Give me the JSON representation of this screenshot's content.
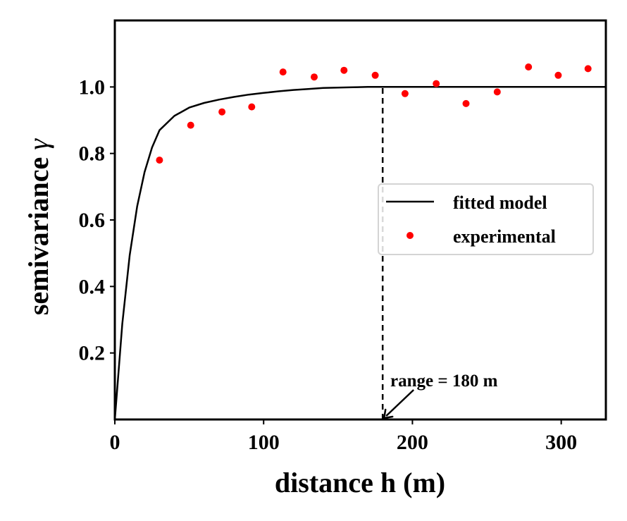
{
  "chart_data": {
    "type": "line",
    "title": "",
    "xlabel": "distance h (m)",
    "ylabel_text": "semivariance",
    "ylabel_symbol": "γ",
    "xlim": [
      0,
      330
    ],
    "ylim": [
      0,
      1.2
    ],
    "xticks": [
      0,
      100,
      200,
      300
    ],
    "yticks": [
      0.2,
      0.4,
      0.6,
      0.8,
      1.0
    ],
    "grid": false,
    "legend_position": "center-right",
    "series": [
      {
        "name": "fitted model",
        "kind": "line",
        "color": "#000000",
        "model": "exponential",
        "sill": 1.0,
        "range": 180,
        "x": [
          0,
          5,
          10,
          15,
          20,
          25,
          30,
          40,
          50,
          60,
          70,
          80,
          90,
          100,
          110,
          120,
          130,
          140,
          150,
          160,
          170,
          180,
          200,
          250,
          300,
          330
        ],
        "y": [
          0.0,
          0.288,
          0.494,
          0.641,
          0.744,
          0.818,
          0.87,
          0.913,
          0.938,
          0.952,
          0.962,
          0.97,
          0.977,
          0.982,
          0.987,
          0.991,
          0.994,
          0.997,
          0.998,
          0.999,
          1.0,
          1.0,
          1.0,
          1.0,
          1.0,
          1.0
        ]
      },
      {
        "name": "experimental",
        "kind": "scatter",
        "color": "#ff0000",
        "x": [
          30,
          51,
          72,
          92,
          113,
          134,
          154,
          175,
          195,
          216,
          236,
          257,
          278,
          298,
          318
        ],
        "y": [
          0.78,
          0.885,
          0.925,
          0.94,
          1.045,
          1.03,
          1.05,
          1.035,
          0.98,
          1.01,
          0.95,
          0.985,
          1.06,
          1.035,
          1.055
        ]
      }
    ],
    "annotations": [
      {
        "text": "range = 180 m",
        "target_x": 180,
        "target_y": 0,
        "style": "arrow"
      }
    ],
    "reference_lines": [
      {
        "orientation": "vertical",
        "x": 180,
        "y_from": 0,
        "y_to": 1.0,
        "style": "dashed",
        "color": "#000000"
      }
    ]
  }
}
